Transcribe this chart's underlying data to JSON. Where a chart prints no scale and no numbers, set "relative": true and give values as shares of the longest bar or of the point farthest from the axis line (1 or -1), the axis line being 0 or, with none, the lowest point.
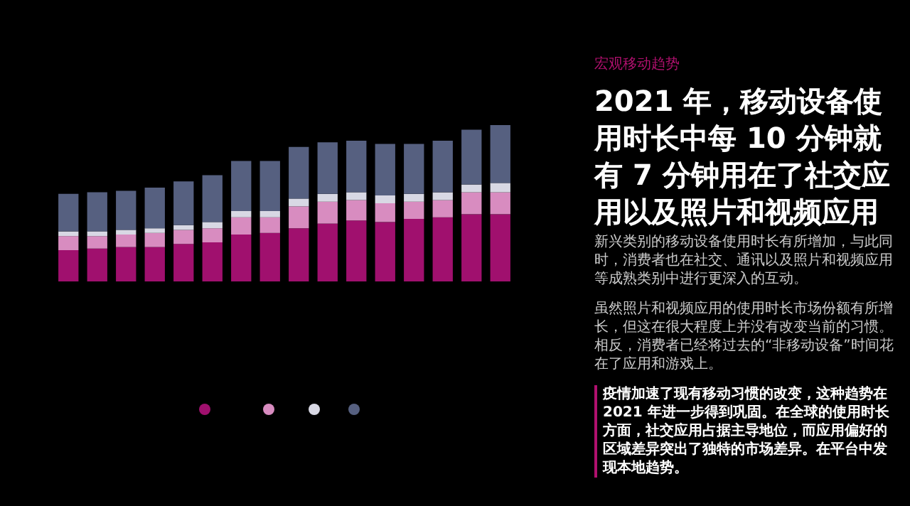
{
  "chart_data": {
    "type": "bar",
    "stacked": true,
    "relative": true,
    "subtitle": "宏观移动趋势",
    "title": "2021 年，移动设备使用时长中每 10 分钟就有 7 分钟用在了社交应用以及照片和视频应用",
    "annotations": [
      "新兴类别的移动设备使用时长有所增加，与此同时，消费者也在社交、通讯以及照片和视频应用等成熟类别中进行更深入的互动。",
      "虽然照片和视频应用的使用时长市场份额有所增长，但这在很大程度上并没有改变当前的习惯。相反，消费者已经将过去的“非移动设备”时间花在了应用和游戏上。",
      "疫情加速了现有移动习惯的改变，这种趋势在 2021 年进一步得到巩固。在全球的使用时长方面，社交应用占据主导地位，而应用偏好的区域差异突出了独特的市场差异。在平台中发现本地趋势。"
    ],
    "categories": [
      null,
      null,
      null,
      null,
      null,
      null,
      null,
      null,
      null,
      null,
      null,
      null,
      null,
      null,
      null,
      null
    ],
    "series": [
      {
        "color": "#a0106e",
        "values": [
          0.2,
          0.21,
          0.22,
          0.22,
          0.24,
          0.25,
          0.3,
          0.31,
          0.34,
          0.37,
          0.39,
          0.38,
          0.4,
          0.41,
          0.43,
          0.43
        ]
      },
      {
        "color": "#d88cc0",
        "values": [
          0.09,
          0.08,
          0.08,
          0.09,
          0.09,
          0.09,
          0.11,
          0.1,
          0.14,
          0.14,
          0.13,
          0.12,
          0.11,
          0.11,
          0.14,
          0.14
        ]
      },
      {
        "color": "#d8d8e4",
        "values": [
          0.03,
          0.03,
          0.03,
          0.03,
          0.03,
          0.04,
          0.04,
          0.04,
          0.05,
          0.05,
          0.05,
          0.05,
          0.05,
          0.05,
          0.05,
          0.06
        ]
      },
      {
        "color": "#566080",
        "values": [
          0.24,
          0.25,
          0.25,
          0.26,
          0.28,
          0.3,
          0.32,
          0.32,
          0.33,
          0.33,
          0.33,
          0.33,
          0.32,
          0.33,
          0.35,
          0.37
        ]
      }
    ]
  }
}
